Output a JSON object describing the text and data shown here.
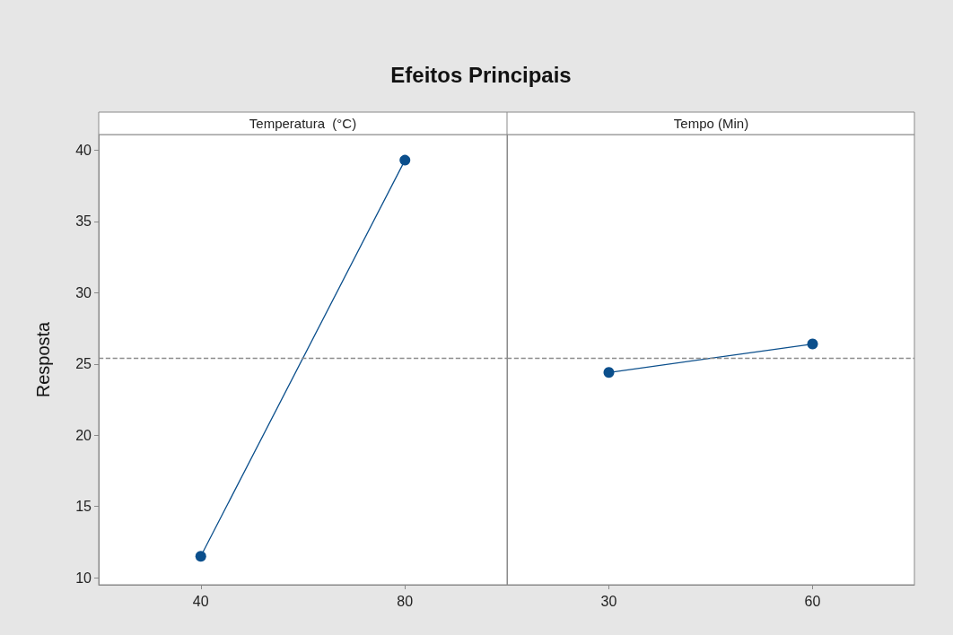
{
  "chart_data": [
    {
      "type": "line",
      "title": "Efeitos Principais",
      "subtitle": "Temperatura  (°C)",
      "ylabel": "Resposta",
      "categories": [
        "40",
        "80"
      ],
      "series": [
        {
          "color": "#0b4f8c",
          "values": [
            11.5,
            39.3
          ]
        }
      ],
      "ylim": [
        9.5,
        41.1
      ],
      "yticks": [
        10,
        15,
        20,
        25,
        30,
        35,
        40
      ],
      "grid": false,
      "marker": "circle",
      "line_style": "solid",
      "ref_lines": [
        {
          "axis": "y",
          "value": 25.4,
          "color": "#8c8c8c",
          "line_style": "dashed"
        }
      ]
    },
    {
      "type": "line",
      "subtitle": "Tempo (Min)",
      "categories": [
        "30",
        "60"
      ],
      "series": [
        {
          "color": "#0b4f8c",
          "values": [
            24.4,
            26.4
          ]
        }
      ],
      "ylim": [
        9.5,
        41.1
      ],
      "yticks": [
        10,
        15,
        20,
        25,
        30,
        35,
        40
      ],
      "tick_labels": "x",
      "grid": false,
      "marker": "circle",
      "line_style": "solid",
      "ref_lines": [
        {
          "axis": "y",
          "value": 25.4,
          "color": "#8c8c8c",
          "line_style": "dashed"
        }
      ]
    }
  ]
}
